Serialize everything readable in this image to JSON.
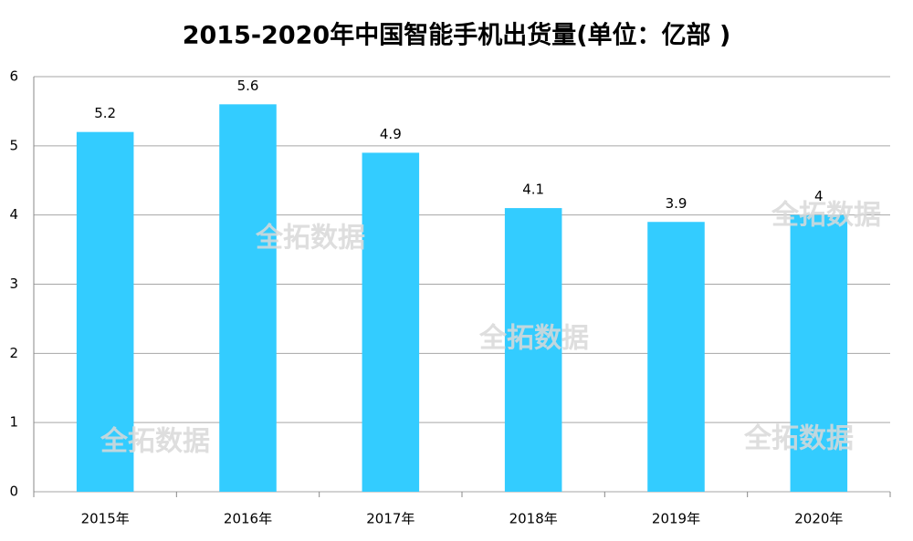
{
  "chart_data": {
    "type": "bar",
    "title": "2015-2020年中国智能手机出货量(单位：亿部 )",
    "categories": [
      "2015年",
      "2016年",
      "2017年",
      "2018年",
      "2019年",
      "2020年"
    ],
    "values": [
      5.2,
      5.6,
      4.9,
      4.1,
      3.9,
      4
    ],
    "color": "#33ccff",
    "ylim": [
      0,
      6
    ],
    "yticks": [
      0,
      1,
      2,
      3,
      4,
      5,
      6
    ],
    "grid": true,
    "watermark": "全拓数据"
  }
}
